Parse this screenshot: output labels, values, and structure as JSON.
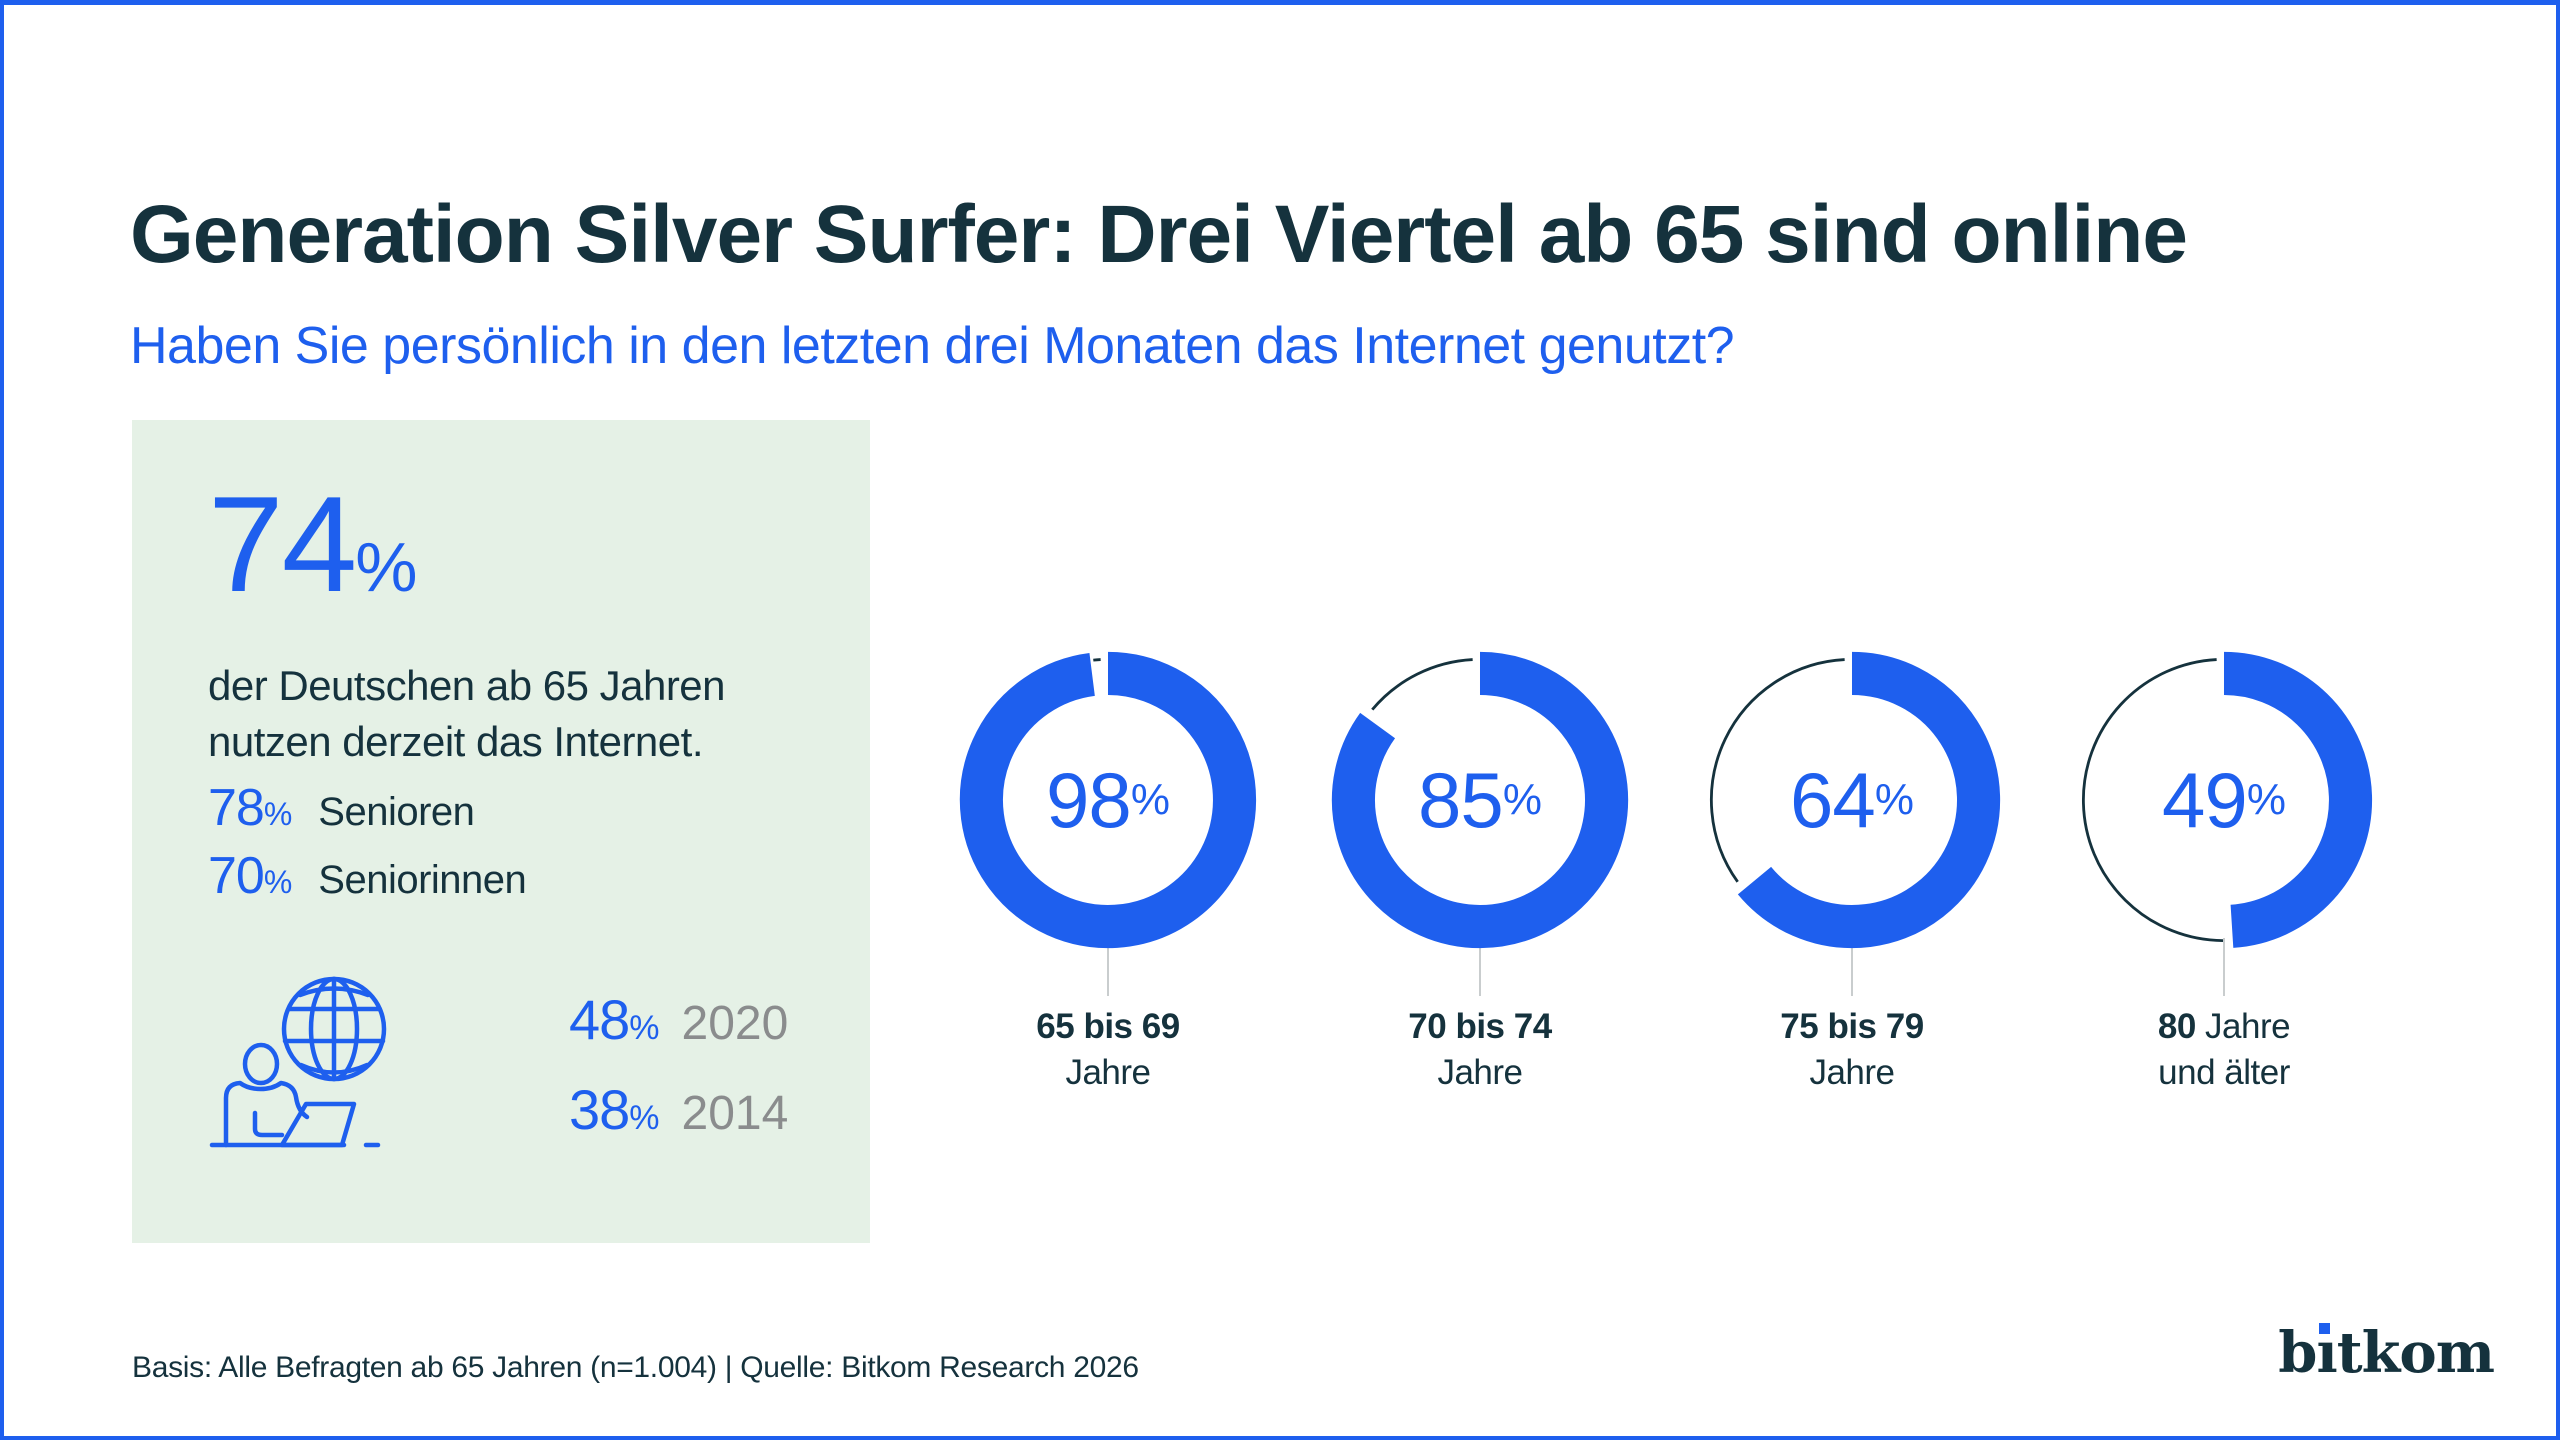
{
  "colors": {
    "accent_blue": "#1e5fee",
    "dark_navy": "#15323d",
    "box_green": "#e5f1e6",
    "year_gray": "#8a8c8d",
    "connector_gray": "#c9cdce",
    "background": "#ffffff"
  },
  "header": {
    "title": "Generation Silver Surfer: Drei Viertel ab 65 sind online",
    "subtitle": "Haben Sie persönlich in den letzten drei Monaten das Internet genutzt?"
  },
  "highlight_box": {
    "headline_value": "74",
    "percent_sign": "%",
    "description_line1": "der Deutschen ab 65 Jahren",
    "description_line2": "nutzen derzeit das Internet.",
    "gender_stats": [
      {
        "value": "78",
        "label": "Senioren"
      },
      {
        "value": "70",
        "label": "Seniorinnen"
      }
    ],
    "history_stats": [
      {
        "value": "48",
        "year": "2020"
      },
      {
        "value": "38",
        "year": "2014"
      }
    ],
    "icon": "person-laptop-globe-icon"
  },
  "chart_data": {
    "type": "donut",
    "title": "Generation Silver Surfer: Drei Viertel ab 65 sind online",
    "subtitle": "Haben Sie persönlich in den letzten drei Monaten das Internet genutzt?",
    "unit": "%",
    "legend_position": "below-each-donut",
    "series": [
      {
        "category": "65 bis 69 Jahre",
        "value": 98,
        "label_bold": "65 bis 69",
        "label_rest": "",
        "label_line2": "Jahre"
      },
      {
        "category": "70 bis 74 Jahre",
        "value": 85,
        "label_bold": "70 bis 74",
        "label_rest": "",
        "label_line2": "Jahre"
      },
      {
        "category": "75 bis 79 Jahre",
        "value": 64,
        "label_bold": "75 bis 79",
        "label_rest": "",
        "label_line2": "Jahre"
      },
      {
        "category": "80 Jahre und älter",
        "value": 49,
        "label_bold": "80",
        "label_rest": " Jahre",
        "label_line2": "und älter"
      }
    ],
    "highlight_values": {
      "total_65_plus": 74,
      "senioren": 78,
      "seniorinnen": 70,
      "year_2020": 48,
      "year_2014": 38
    }
  },
  "footer": {
    "source": "Basis: Alle Befragten ab 65 Jahren (n=1.004) | Quelle: Bitkom Research 2026",
    "logo_text": "bitkom"
  }
}
